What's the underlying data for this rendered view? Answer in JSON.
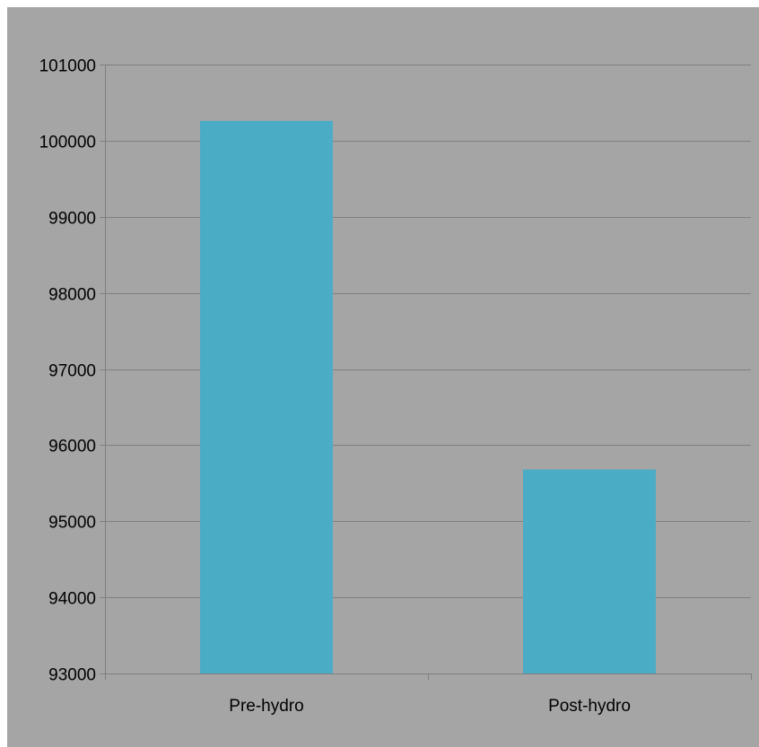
{
  "chart_data": {
    "type": "bar",
    "title": "",
    "xlabel": "",
    "ylabel": "",
    "categories": [
      "Pre-hydro",
      "Post-hydro"
    ],
    "values": [
      100260,
      95680
    ],
    "ylim": [
      93000,
      101000
    ],
    "yticks": [
      93000,
      94000,
      95000,
      96000,
      97000,
      98000,
      99000,
      100000,
      101000
    ],
    "ytick_labels": [
      "93000",
      "94000",
      "95000",
      "96000",
      "97000",
      "98000",
      "99000",
      "100000",
      "101000"
    ],
    "grid": true,
    "legend": "none",
    "colors": {
      "bar": "#4bacc6",
      "background": "#a5a5a5",
      "axis": "#7f7f7f",
      "gridline": "#7f7f7f"
    }
  }
}
